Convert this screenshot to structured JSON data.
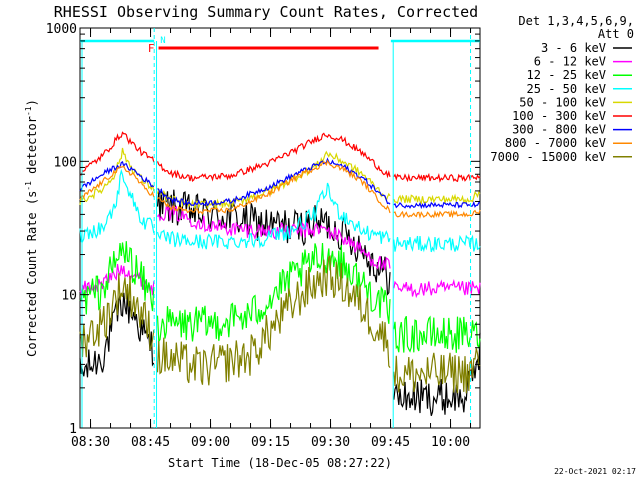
{
  "chart_data": {
    "type": "line",
    "title": "RHESSI Observing Summary Count Rates, Corrected",
    "ylabel_main": "Corrected Count Rate (s",
    "ylabel_sup1": "-1",
    "ylabel_mid": " detector",
    "ylabel_sup2": "-1",
    "ylabel_end": ")",
    "xlabel": "Start Time (18-Dec-05 08:27:22)",
    "footer": "22-Oct-2021 02:17",
    "legend_header": [
      "Det 1,3,4,5,6,9,",
      "Att 0"
    ],
    "y_scale": "log",
    "ylim": [
      1,
      1000
    ],
    "y_ticks": [
      {
        "value": 1,
        "label": "1"
      },
      {
        "value": 10,
        "label": "10"
      },
      {
        "value": 100,
        "label": "100"
      },
      {
        "value": 1000,
        "label": "1000"
      }
    ],
    "xlim": [
      "08:27:22",
      "10:07:22"
    ],
    "x_ticks": [
      {
        "time": "08:30",
        "label": "08:30"
      },
      {
        "time": "08:45",
        "label": "08:45"
      },
      {
        "time": "09:00",
        "label": "09:00"
      },
      {
        "time": "09:15",
        "label": "09:15"
      },
      {
        "time": "09:30",
        "label": "09:30"
      },
      {
        "time": "09:45",
        "label": "09:45"
      },
      {
        "time": "10:00",
        "label": "10:00"
      }
    ],
    "data_gaps": [
      [
        "08:45:55",
        "08:46:30"
      ],
      [
        "09:45:05",
        "09:45:40"
      ]
    ],
    "night_markers": [
      {
        "label": "N",
        "color": "#00ffff",
        "start": "08:27:22",
        "end": "08:45:55",
        "marker_time": "08:45:55"
      },
      {
        "label": "",
        "color": "#00ffff",
        "start": "09:45:05",
        "end": "10:07:22",
        "marker_time": "10:05:00"
      }
    ],
    "flare_markers": [
      {
        "label": "F",
        "color": "#ff0000",
        "start": "08:47:00",
        "end": "09:42:00"
      }
    ],
    "series": [
      {
        "name": "3 - 6 keV",
        "color": "#000000",
        "noise": 0.14,
        "points": [
          [
            "08:27:22",
            2.5
          ],
          [
            "08:33:00",
            3.5
          ],
          [
            "08:38:00",
            9
          ],
          [
            "08:41:00",
            7
          ],
          [
            "08:44:00",
            4.5
          ],
          [
            "08:45:55",
            4
          ],
          [
            "08:46:30",
            48
          ],
          [
            "08:55:00",
            42
          ],
          [
            "09:05:00",
            38
          ],
          [
            "09:15:00",
            33
          ],
          [
            "09:22:00",
            32
          ],
          [
            "09:28:00",
            35
          ],
          [
            "09:34:00",
            28
          ],
          [
            "09:38:00",
            22
          ],
          [
            "09:41:00",
            17
          ],
          [
            "09:43:00",
            15
          ],
          [
            "09:45:00",
            13
          ],
          [
            "09:45:40",
            1.7
          ],
          [
            "10:04:00",
            1.7
          ],
          [
            "10:07:22",
            4
          ]
        ]
      },
      {
        "name": "6 - 12 keV",
        "color": "#ff00ff",
        "noise": 0.06,
        "points": [
          [
            "08:27:22",
            11
          ],
          [
            "08:33:00",
            12
          ],
          [
            "08:38:00",
            16
          ],
          [
            "08:41:00",
            14
          ],
          [
            "08:44:00",
            12
          ],
          [
            "08:45:55",
            11
          ],
          [
            "08:46:30",
            42
          ],
          [
            "08:52:00",
            40
          ],
          [
            "09:00:00",
            33
          ],
          [
            "09:06:00",
            31
          ],
          [
            "09:15:00",
            30
          ],
          [
            "09:22:00",
            30
          ],
          [
            "09:28:00",
            31
          ],
          [
            "09:34:00",
            26
          ],
          [
            "09:38:00",
            21
          ],
          [
            "09:41:00",
            18
          ],
          [
            "09:45:00",
            16
          ],
          [
            "09:45:40",
            11
          ],
          [
            "10:05:00",
            11
          ],
          [
            "10:07:22",
            11
          ]
        ]
      },
      {
        "name": "12 - 25 keV",
        "color": "#00ff00",
        "noise": 0.14,
        "points": [
          [
            "08:27:22",
            9
          ],
          [
            "08:33:00",
            11
          ],
          [
            "08:38:00",
            22
          ],
          [
            "08:41:00",
            16
          ],
          [
            "08:44:00",
            11
          ],
          [
            "08:45:55",
            9
          ],
          [
            "08:46:30",
            6
          ],
          [
            "09:00:00",
            6
          ],
          [
            "09:10:00",
            7
          ],
          [
            "09:20:00",
            13
          ],
          [
            "09:25:00",
            17
          ],
          [
            "09:29:00",
            20
          ],
          [
            "09:33:00",
            17
          ],
          [
            "09:38:00",
            12
          ],
          [
            "09:42:00",
            9
          ],
          [
            "09:45:00",
            7
          ],
          [
            "09:45:40",
            5
          ],
          [
            "10:05:00",
            5
          ],
          [
            "10:07:22",
            5
          ]
        ]
      },
      {
        "name": "25 - 50 keV",
        "color": "#00ffff",
        "noise": 0.06,
        "points": [
          [
            "08:27:22",
            28
          ],
          [
            "08:33:00",
            32
          ],
          [
            "08:36:00",
            45
          ],
          [
            "08:38:00",
            85
          ],
          [
            "08:40:00",
            55
          ],
          [
            "08:43:00",
            36
          ],
          [
            "08:45:55",
            31
          ],
          [
            "08:46:30",
            27
          ],
          [
            "08:55:00",
            25
          ],
          [
            "09:05:00",
            25
          ],
          [
            "09:12:00",
            26
          ],
          [
            "09:20:00",
            30
          ],
          [
            "09:26:00",
            40
          ],
          [
            "09:29:00",
            62
          ],
          [
            "09:32:00",
            42
          ],
          [
            "09:38:00",
            30
          ],
          [
            "09:45:00",
            26
          ],
          [
            "09:45:40",
            24
          ],
          [
            "10:05:00",
            24
          ],
          [
            "10:07:22",
            24
          ]
        ]
      },
      {
        "name": "50 - 100 keV",
        "color": "#d8d800",
        "noise": 0.03,
        "points": [
          [
            "08:27:22",
            50
          ],
          [
            "08:33:00",
            62
          ],
          [
            "08:36:00",
            80
          ],
          [
            "08:38:00",
            118
          ],
          [
            "08:40:00",
            92
          ],
          [
            "08:43:00",
            72
          ],
          [
            "08:45:55",
            62
          ],
          [
            "08:50:00",
            52
          ],
          [
            "08:55:00",
            47
          ],
          [
            "09:05:00",
            48
          ],
          [
            "09:15:00",
            60
          ],
          [
            "09:22:00",
            78
          ],
          [
            "09:27:00",
            95
          ],
          [
            "09:29:00",
            115
          ],
          [
            "09:33:00",
            100
          ],
          [
            "09:38:00",
            80
          ],
          [
            "09:43:00",
            57
          ],
          [
            "09:45:00",
            52
          ],
          [
            "09:45:40",
            52
          ],
          [
            "10:05:00",
            52
          ],
          [
            "10:07:22",
            58
          ]
        ]
      },
      {
        "name": "100 - 300 keV",
        "color": "#ff0000",
        "noise": 0.025,
        "points": [
          [
            "08:27:22",
            82
          ],
          [
            "08:33:00",
            110
          ],
          [
            "08:36:00",
            140
          ],
          [
            "08:38:00",
            165
          ],
          [
            "08:40:00",
            140
          ],
          [
            "08:43:00",
            115
          ],
          [
            "08:45:55",
            100
          ],
          [
            "08:50:00",
            82
          ],
          [
            "08:55:00",
            75
          ],
          [
            "09:05:00",
            78
          ],
          [
            "09:15:00",
            98
          ],
          [
            "09:22:00",
            125
          ],
          [
            "09:27:00",
            150
          ],
          [
            "09:29:00",
            160
          ],
          [
            "09:33:00",
            145
          ],
          [
            "09:38:00",
            115
          ],
          [
            "09:43:00",
            85
          ],
          [
            "09:45:00",
            78
          ],
          [
            "09:45:40",
            75
          ],
          [
            "10:05:00",
            75
          ],
          [
            "10:07:22",
            78
          ]
        ]
      },
      {
        "name": "300 - 800 keV",
        "color": "#0000ff",
        "noise": 0.02,
        "points": [
          [
            "08:27:22",
            62
          ],
          [
            "08:33:00",
            80
          ],
          [
            "08:36:00",
            90
          ],
          [
            "08:38:00",
            95
          ],
          [
            "08:41:00",
            85
          ],
          [
            "08:43:00",
            75
          ],
          [
            "08:45:55",
            65
          ],
          [
            "08:50:00",
            52
          ],
          [
            "08:55:00",
            48
          ],
          [
            "09:05:00",
            50
          ],
          [
            "09:15:00",
            65
          ],
          [
            "09:22:00",
            82
          ],
          [
            "09:27:00",
            95
          ],
          [
            "09:29:00",
            100
          ],
          [
            "09:33:00",
            92
          ],
          [
            "09:38:00",
            75
          ],
          [
            "09:43:00",
            55
          ],
          [
            "09:45:00",
            48
          ],
          [
            "09:45:40",
            47
          ],
          [
            "10:05:00",
            47
          ],
          [
            "10:07:22",
            47
          ]
        ]
      },
      {
        "name": "800 - 7000 keV",
        "color": "#ff8800",
        "noise": 0.02,
        "points": [
          [
            "08:27:22",
            52
          ],
          [
            "08:33:00",
            70
          ],
          [
            "08:36:00",
            83
          ],
          [
            "08:38:00",
            90
          ],
          [
            "08:41:00",
            78
          ],
          [
            "08:43:00",
            65
          ],
          [
            "08:45:55",
            55
          ],
          [
            "08:50:00",
            45
          ],
          [
            "08:55:00",
            42
          ],
          [
            "09:05:00",
            43
          ],
          [
            "09:15:00",
            58
          ],
          [
            "09:22:00",
            78
          ],
          [
            "09:27:00",
            92
          ],
          [
            "09:29:00",
            98
          ],
          [
            "09:33:00",
            88
          ],
          [
            "09:38:00",
            70
          ],
          [
            "09:43:00",
            48
          ],
          [
            "09:45:00",
            42
          ],
          [
            "09:45:40",
            40
          ],
          [
            "10:05:00",
            40
          ],
          [
            "10:07:22",
            42
          ]
        ]
      },
      {
        "name": "7000 - 15000 keV",
        "color": "#808000",
        "noise": 0.16,
        "points": [
          [
            "08:27:22",
            4.5
          ],
          [
            "08:33:00",
            6
          ],
          [
            "08:38:00",
            12
          ],
          [
            "08:41:00",
            9
          ],
          [
            "08:44:00",
            6
          ],
          [
            "08:45:55",
            5
          ],
          [
            "08:46:30",
            3.5
          ],
          [
            "08:58:00",
            2.8
          ],
          [
            "09:10:00",
            3.5
          ],
          [
            "09:18:00",
            7
          ],
          [
            "09:24:00",
            11
          ],
          [
            "09:29:00",
            14
          ],
          [
            "09:33:00",
            12
          ],
          [
            "09:38:00",
            8
          ],
          [
            "09:43:00",
            5
          ],
          [
            "09:45:00",
            4
          ],
          [
            "09:45:40",
            2.5
          ],
          [
            "10:05:00",
            2.6
          ],
          [
            "10:07:22",
            3.5
          ]
        ]
      }
    ]
  }
}
